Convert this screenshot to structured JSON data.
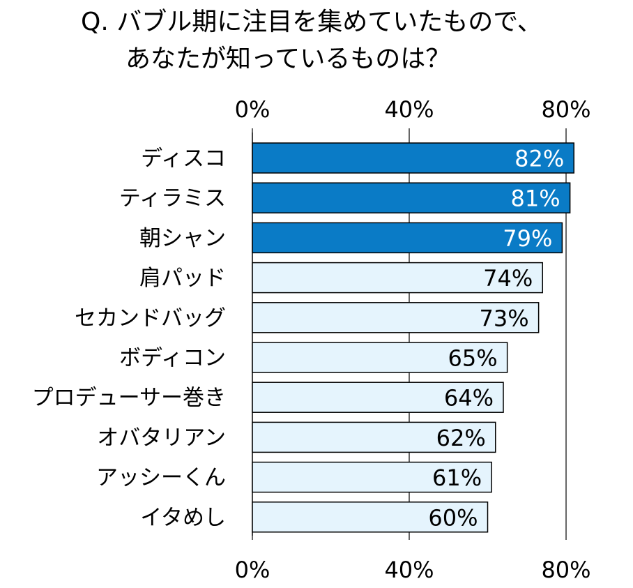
{
  "title": {
    "line1": "Q. バブル期に注目を集めていたもので、",
    "line2": "あなたが知っているものは？"
  },
  "chart_data": {
    "type": "bar",
    "orientation": "horizontal",
    "title": "Q. バブル期に注目を集めていたもので、あなたが知っているものは？",
    "categories": [
      "ディスコ",
      "ティラミス",
      "朝シャン",
      "肩パッド",
      "セカンドバッグ",
      "ボディコン",
      "プロデューサー巻き",
      "オバタリアン",
      "アッシーくん",
      "イタめし"
    ],
    "values": [
      82,
      81,
      79,
      74,
      73,
      65,
      64,
      62,
      61,
      60
    ],
    "value_labels": [
      "82%",
      "81%",
      "79%",
      "74%",
      "73%",
      "65%",
      "64%",
      "62%",
      "61%",
      "60%"
    ],
    "highlighted": [
      true,
      true,
      true,
      false,
      false,
      false,
      false,
      false,
      false,
      false
    ],
    "xlim": [
      0,
      80
    ],
    "x_ticks": [
      0,
      40,
      80
    ],
    "x_tick_labels": [
      "0%",
      "40%",
      "80%"
    ],
    "x_axis_position": "top and bottom",
    "grid": true,
    "colors": {
      "highlight_fill": "#0a7bc6",
      "normal_fill": "#e5f4fd",
      "bar_stroke": "#000000",
      "highlight_label": "#ffffff",
      "normal_label": "#000000"
    }
  }
}
